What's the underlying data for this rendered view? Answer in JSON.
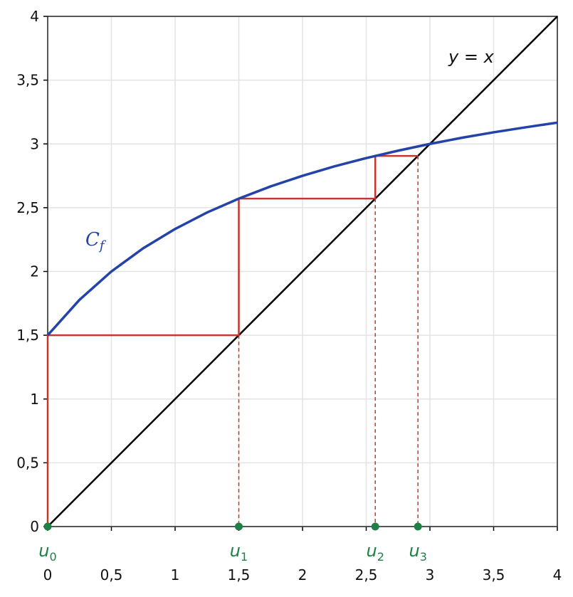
{
  "chart_data": {
    "type": "cobweb",
    "xlim": [
      0,
      4
    ],
    "ylim": [
      0,
      4
    ],
    "xticks": [
      0,
      {
        "value": 0.5,
        "label": "0,5"
      },
      1,
      {
        "value": 1.5,
        "label": "1,5"
      },
      2,
      {
        "value": 2.5,
        "label": "2,5"
      },
      3,
      {
        "value": 3.5,
        "label": "3,5"
      },
      4
    ],
    "yticks": [
      0,
      {
        "value": 0.5,
        "label": "0,5"
      },
      1,
      {
        "value": 1.5,
        "label": "1,5"
      },
      2,
      {
        "value": 2.5,
        "label": "2,5"
      },
      3,
      {
        "value": 3.5,
        "label": "3,5"
      },
      4
    ],
    "grid": true,
    "curve": {
      "color": "#2443a8",
      "x": [
        0,
        0.25,
        0.5,
        0.75,
        1,
        1.25,
        1.5,
        1.75,
        2,
        2.25,
        2.5,
        2.75,
        3,
        3.25,
        3.5,
        3.75,
        4
      ],
      "y": [
        1.5,
        1.778,
        2,
        2.182,
        2.333,
        2.462,
        2.571,
        2.667,
        2.75,
        2.824,
        2.889,
        2.947,
        3,
        3.048,
        3.091,
        3.13,
        3.167
      ],
      "label": {
        "text": "C",
        "sub": "f"
      }
    },
    "diagonal": {
      "color": "#000000",
      "x": [
        0,
        4
      ],
      "y": [
        0,
        4
      ],
      "label": "y = x"
    },
    "cobweb": {
      "color": "#c0392b",
      "x": [
        0,
        0,
        1.5,
        1.5,
        2.571,
        2.571,
        2.906
      ],
      "y": [
        0,
        1.5,
        1.5,
        2.571,
        2.571,
        2.906,
        2.906
      ]
    },
    "sequence": {
      "color": "#1e8045",
      "points": [
        {
          "x": 0,
          "label": "u",
          "sub": "0"
        },
        {
          "x": 1.5,
          "label": "u",
          "sub": "1"
        },
        {
          "x": 2.571,
          "label": "u",
          "sub": "2"
        },
        {
          "x": 2.906,
          "label": "u",
          "sub": "3"
        }
      ]
    }
  }
}
